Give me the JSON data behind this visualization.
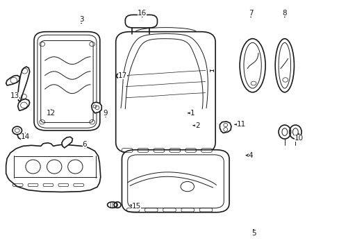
{
  "bg_color": "#ffffff",
  "line_color": "#1a1a1a",
  "figsize": [
    4.89,
    3.6
  ],
  "dpi": 100,
  "label_positions": {
    "1": [
      0.567,
      0.548,
      0.548,
      0.548
    ],
    "2": [
      0.582,
      0.498,
      0.563,
      0.498
    ],
    "3": [
      0.238,
      0.925,
      0.238,
      0.908
    ],
    "4": [
      0.74,
      0.378,
      0.718,
      0.378
    ],
    "5": [
      0.748,
      0.062,
      0.748,
      0.082
    ],
    "6": [
      0.248,
      0.422,
      0.248,
      0.408
    ],
    "7": [
      0.74,
      0.952,
      0.74,
      0.932
    ],
    "8": [
      0.84,
      0.952,
      0.84,
      0.932
    ],
    "9": [
      0.31,
      0.548,
      0.31,
      0.532
    ],
    "10": [
      0.882,
      0.448,
      0.882,
      0.468
    ],
    "11": [
      0.712,
      0.502,
      0.692,
      0.502
    ],
    "12": [
      0.148,
      0.548,
      0.148,
      0.562
    ],
    "13": [
      0.042,
      0.618,
      0.058,
      0.608
    ],
    "14": [
      0.072,
      0.452,
      0.072,
      0.468
    ],
    "15": [
      0.402,
      0.172,
      0.382,
      0.178
    ],
    "16": [
      0.418,
      0.952,
      0.418,
      0.932
    ],
    "17": [
      0.36,
      0.698,
      0.376,
      0.698
    ]
  }
}
